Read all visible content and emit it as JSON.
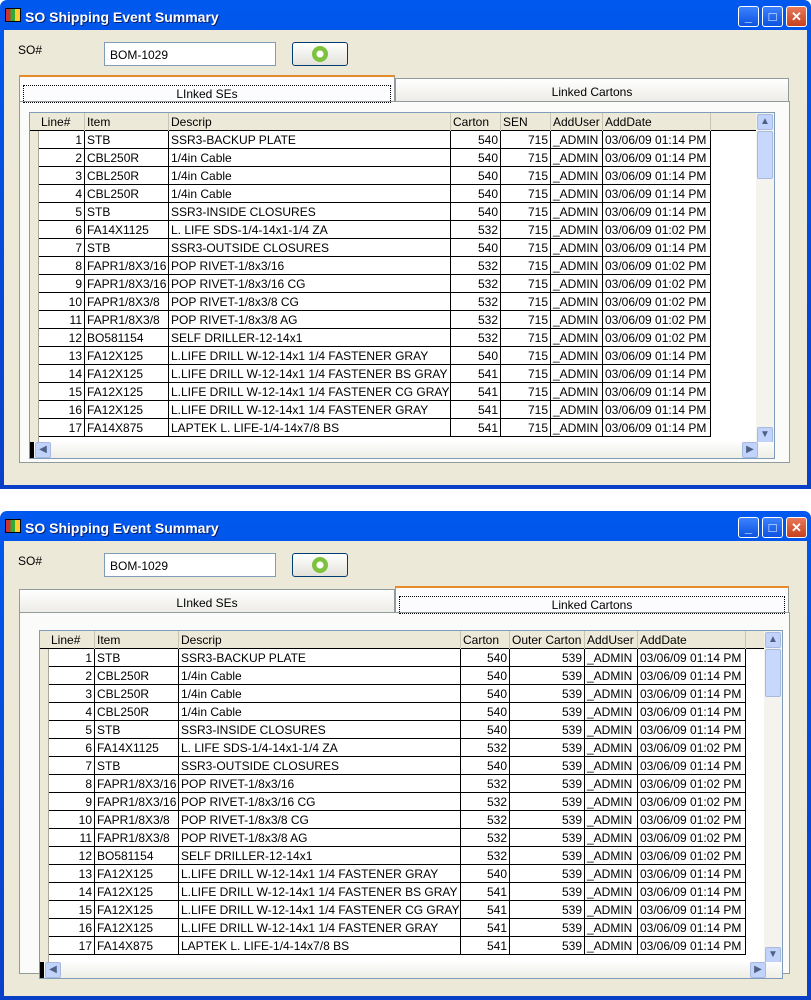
{
  "windows": [
    {
      "title": "SO Shipping Event Summary",
      "so_label": "SO#",
      "so_value": "BOM-1029",
      "refresh_icon": "refresh-icon",
      "tabs": [
        {
          "label": "LInked SEs",
          "active": true
        },
        {
          "label": "Linked Cartons",
          "active": false
        }
      ],
      "columns": [
        "Line#",
        "Item",
        "Descrip",
        "Carton",
        "SEN",
        "AddUser",
        "AddDate"
      ],
      "rows": [
        [
          "1",
          "STB",
          "SSR3-BACKUP PLATE",
          "540",
          "715",
          "_ADMIN",
          "03/06/09 01:14 PM"
        ],
        [
          "2",
          "CBL250R",
          "1/4in Cable",
          "540",
          "715",
          "_ADMIN",
          "03/06/09 01:14 PM"
        ],
        [
          "3",
          "CBL250R",
          "1/4in Cable",
          "540",
          "715",
          "_ADMIN",
          "03/06/09 01:14 PM"
        ],
        [
          "4",
          "CBL250R",
          "1/4in Cable",
          "540",
          "715",
          "_ADMIN",
          "03/06/09 01:14 PM"
        ],
        [
          "5",
          "STB",
          "SSR3-INSIDE CLOSURES",
          "540",
          "715",
          "_ADMIN",
          "03/06/09 01:14 PM"
        ],
        [
          "6",
          "FA14X1125",
          "L. LIFE SDS-1/4-14x1-1/4 ZA",
          "532",
          "715",
          "_ADMIN",
          "03/06/09 01:02 PM"
        ],
        [
          "7",
          "STB",
          "SSR3-OUTSIDE CLOSURES",
          "540",
          "715",
          "_ADMIN",
          "03/06/09 01:14 PM"
        ],
        [
          "8",
          "FAPR1/8X3/16",
          "POP RIVET-1/8x3/16",
          "532",
          "715",
          "_ADMIN",
          "03/06/09 01:02 PM"
        ],
        [
          "9",
          "FAPR1/8X3/16",
          "POP RIVET-1/8x3/16 CG",
          "532",
          "715",
          "_ADMIN",
          "03/06/09 01:02 PM"
        ],
        [
          "10",
          "FAPR1/8X3/8",
          "POP RIVET-1/8x3/8 CG",
          "532",
          "715",
          "_ADMIN",
          "03/06/09 01:02 PM"
        ],
        [
          "11",
          "FAPR1/8X3/8",
          "POP RIVET-1/8x3/8 AG",
          "532",
          "715",
          "_ADMIN",
          "03/06/09 01:02 PM"
        ],
        [
          "12",
          "BO581154",
          "SELF DRILLER-12-14x1",
          "532",
          "715",
          "_ADMIN",
          "03/06/09 01:02 PM"
        ],
        [
          "13",
          "FA12X125",
          "L.LIFE DRILL W-12-14x1 1/4 FASTENER  GRAY",
          "540",
          "715",
          "_ADMIN",
          "03/06/09 01:14 PM"
        ],
        [
          "14",
          "FA12X125",
          "L.LIFE DRILL W-12-14x1 1/4 FASTENER BS GRAY",
          "541",
          "715",
          "_ADMIN",
          "03/06/09 01:14 PM"
        ],
        [
          "15",
          "FA12X125",
          "L.LIFE DRILL W-12-14x1 1/4 FASTENER CG GRAY",
          "541",
          "715",
          "_ADMIN",
          "03/06/09 01:14 PM"
        ],
        [
          "16",
          "FA12X125",
          "L.LIFE DRILL W-12-14x1 1/4 FASTENER  GRAY",
          "541",
          "715",
          "_ADMIN",
          "03/06/09 01:14 PM"
        ],
        [
          "17",
          "FA14X875",
          "LAPTEK L. LIFE-1/4-14x7/8 BS",
          "541",
          "715",
          "_ADMIN",
          "03/06/09 01:14 PM"
        ]
      ]
    },
    {
      "title": "SO Shipping Event Summary",
      "so_label": "SO#",
      "so_value": "BOM-1029",
      "refresh_icon": "refresh-icon",
      "tabs": [
        {
          "label": "LInked SEs",
          "active": false
        },
        {
          "label": "Linked Cartons",
          "active": true
        }
      ],
      "columns": [
        "Line#",
        "Item",
        "Descrip",
        "Carton",
        "Outer Carton",
        "AddUser",
        "AddDate"
      ],
      "rows": [
        [
          "1",
          "STB",
          "SSR3-BACKUP PLATE",
          "540",
          "539",
          "_ADMIN",
          "03/06/09 01:14 PM"
        ],
        [
          "2",
          "CBL250R",
          "1/4in Cable",
          "540",
          "539",
          "_ADMIN",
          "03/06/09 01:14 PM"
        ],
        [
          "3",
          "CBL250R",
          "1/4in Cable",
          "540",
          "539",
          "_ADMIN",
          "03/06/09 01:14 PM"
        ],
        [
          "4",
          "CBL250R",
          "1/4in Cable",
          "540",
          "539",
          "_ADMIN",
          "03/06/09 01:14 PM"
        ],
        [
          "5",
          "STB",
          "SSR3-INSIDE CLOSURES",
          "540",
          "539",
          "_ADMIN",
          "03/06/09 01:14 PM"
        ],
        [
          "6",
          "FA14X1125",
          "L. LIFE SDS-1/4-14x1-1/4 ZA",
          "532",
          "539",
          "_ADMIN",
          "03/06/09 01:02 PM"
        ],
        [
          "7",
          "STB",
          "SSR3-OUTSIDE CLOSURES",
          "540",
          "539",
          "_ADMIN",
          "03/06/09 01:14 PM"
        ],
        [
          "8",
          "FAPR1/8X3/16",
          "POP RIVET-1/8x3/16",
          "532",
          "539",
          "_ADMIN",
          "03/06/09 01:02 PM"
        ],
        [
          "9",
          "FAPR1/8X3/16",
          "POP RIVET-1/8x3/16 CG",
          "532",
          "539",
          "_ADMIN",
          "03/06/09 01:02 PM"
        ],
        [
          "10",
          "FAPR1/8X3/8",
          "POP RIVET-1/8x3/8 CG",
          "532",
          "539",
          "_ADMIN",
          "03/06/09 01:02 PM"
        ],
        [
          "11",
          "FAPR1/8X3/8",
          "POP RIVET-1/8x3/8 AG",
          "532",
          "539",
          "_ADMIN",
          "03/06/09 01:02 PM"
        ],
        [
          "12",
          "BO581154",
          "SELF DRILLER-12-14x1",
          "532",
          "539",
          "_ADMIN",
          "03/06/09 01:02 PM"
        ],
        [
          "13",
          "FA12X125",
          "L.LIFE DRILL W-12-14x1 1/4 FASTENER  GRAY",
          "540",
          "539",
          "_ADMIN",
          "03/06/09 01:14 PM"
        ],
        [
          "14",
          "FA12X125",
          "L.LIFE DRILL W-12-14x1 1/4 FASTENER BS GRAY",
          "541",
          "539",
          "_ADMIN",
          "03/06/09 01:14 PM"
        ],
        [
          "15",
          "FA12X125",
          "L.LIFE DRILL W-12-14x1 1/4 FASTENER CG GRAY",
          "541",
          "539",
          "_ADMIN",
          "03/06/09 01:14 PM"
        ],
        [
          "16",
          "FA12X125",
          "L.LIFE DRILL W-12-14x1 1/4 FASTENER  GRAY",
          "541",
          "539",
          "_ADMIN",
          "03/06/09 01:14 PM"
        ],
        [
          "17",
          "FA14X875",
          "LAPTEK L. LIFE-1/4-14x7/8 BS",
          "541",
          "539",
          "_ADMIN",
          "03/06/09 01:14 PM"
        ]
      ]
    }
  ]
}
